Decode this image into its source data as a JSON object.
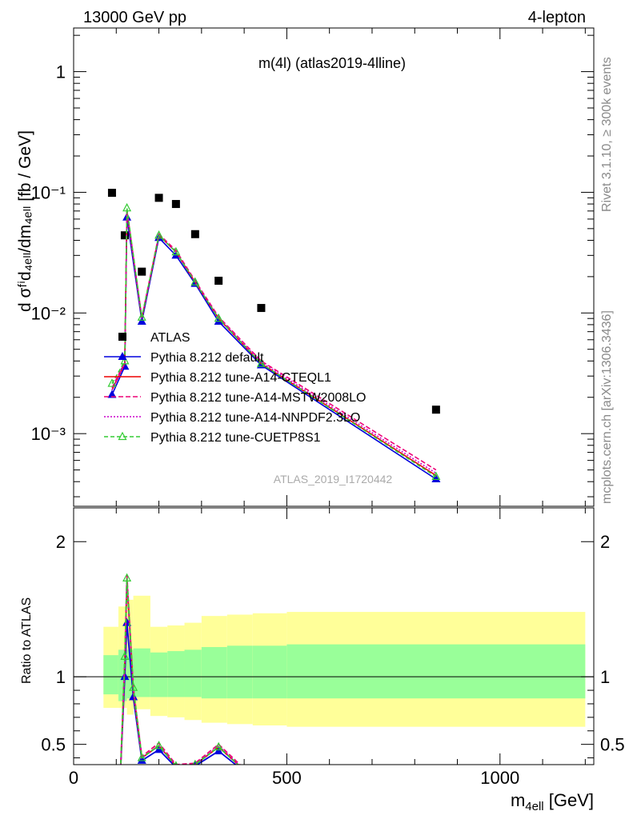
{
  "header": {
    "left": "13000 GeV pp",
    "right": "4-lepton"
  },
  "side_labels": {
    "rivet": "Rivet 3.1.10, ≥ 300k events",
    "mcplots": "mcplots.cern.ch [arXiv:1306.3436]"
  },
  "chart_data": [
    {
      "type": "scatter",
      "title": "m(4l) (atlas2019-4lline)",
      "watermark": "ATLAS_2019_I1720442",
      "xlabel_main": "m",
      "xlabel_sub": "4ell",
      "xlabel_unit": " [GeV]",
      "ylabel": "d σᶠⁱd₄ₑₗₗ/dm₄ₑₗₗ [fb / GeV]",
      "yscale": "log",
      "xlim": [
        0,
        1220
      ],
      "ylim": [
        0.00025,
        2.3
      ],
      "xticks": [
        "0",
        "500",
        "1000"
      ],
      "yticks": [
        "1",
        "10⁻¹",
        "10⁻²",
        "10⁻³"
      ],
      "legend_position": "bottom-left",
      "series": [
        {
          "name": "ATLAS",
          "color": "#000000",
          "marker": "square",
          "x": [
            90,
            120,
            160,
            200,
            240,
            285,
            340,
            440,
            850
          ],
          "y": [
            0.099,
            0.044,
            0.022,
            0.09,
            0.08,
            0.045,
            0.0185,
            0.011,
            0.00158
          ]
        },
        {
          "name": "Pythia 8.212 default",
          "color": "#0000dd",
          "marker": "triangle",
          "x": [
            90,
            120,
            125,
            160,
            200,
            240,
            285,
            340,
            440,
            850
          ],
          "y": [
            0.0021,
            0.0036,
            0.062,
            0.0085,
            0.042,
            0.03,
            0.0175,
            0.0085,
            0.0037,
            0.00042
          ]
        },
        {
          "name": "Pythia 8.212 tune-A14-CTEQL1",
          "color": "#ee0000",
          "marker": "none",
          "x": [
            90,
            120,
            125,
            160,
            200,
            240,
            285,
            340,
            440,
            850
          ],
          "y": [
            0.0023,
            0.0038,
            0.07,
            0.009,
            0.044,
            0.032,
            0.018,
            0.009,
            0.0038,
            0.00045
          ]
        },
        {
          "name": "Pythia 8.212 tune-A14-MSTW2008LO",
          "color": "#ee0077",
          "marker": "none",
          "x": [
            90,
            120,
            125,
            160,
            200,
            240,
            285,
            340,
            440,
            850
          ],
          "y": [
            0.0024,
            0.0039,
            0.072,
            0.0092,
            0.045,
            0.033,
            0.0185,
            0.0093,
            0.004,
            0.0005
          ]
        },
        {
          "name": "Pythia 8.212 tune-A14-NNPDF2.3LO",
          "color": "#cc00cc",
          "marker": "none",
          "x": [
            90,
            120,
            125,
            160,
            200,
            240,
            285,
            340,
            440,
            850
          ],
          "y": [
            0.0023,
            0.0038,
            0.069,
            0.009,
            0.044,
            0.032,
            0.018,
            0.0091,
            0.0039,
            0.00047
          ]
        },
        {
          "name": "Pythia 8.212 tune-CUETP8S1",
          "color": "#33cc33",
          "marker": "open-triangle",
          "x": [
            90,
            120,
            125,
            160,
            200,
            240,
            285,
            340,
            440,
            850
          ],
          "y": [
            0.0026,
            0.004,
            0.074,
            0.0092,
            0.044,
            0.032,
            0.018,
            0.009,
            0.0038,
            0.00044
          ]
        }
      ]
    },
    {
      "type": "line",
      "ylabel": "Ratio to ATLAS",
      "xlim": [
        0,
        1220
      ],
      "ylim": [
        0.35,
        2.25
      ],
      "yticks": [
        "0.5",
        "1",
        "2"
      ],
      "bands": {
        "edges": [
          70,
          105,
          125,
          140,
          180,
          220,
          260,
          300,
          360,
          420,
          500,
          1200
        ],
        "yellow_lo": [
          0.77,
          0.77,
          0.72,
          0.76,
          0.71,
          0.7,
          0.68,
          0.66,
          0.65,
          0.64,
          0.63
        ],
        "yellow_hi": [
          1.37,
          1.52,
          1.57,
          1.6,
          1.37,
          1.38,
          1.4,
          1.45,
          1.46,
          1.47,
          1.48
        ],
        "green_lo": [
          0.87,
          0.82,
          0.84,
          0.85,
          0.85,
          0.85,
          0.85,
          0.84,
          0.84,
          0.84,
          0.84
        ],
        "green_hi": [
          1.16,
          1.2,
          1.2,
          1.21,
          1.18,
          1.19,
          1.2,
          1.22,
          1.23,
          1.23,
          1.24
        ]
      },
      "series": [
        {
          "name": "Pythia 8.212 default",
          "color": "#0000dd",
          "marker": "triangle",
          "x": [
            110,
            120,
            125,
            140,
            160,
            200,
            240,
            285,
            340,
            400
          ],
          "y": [
            0.3,
            1.0,
            1.4,
            0.85,
            0.38,
            0.46,
            0.33,
            0.34,
            0.45,
            0.3
          ]
        },
        {
          "name": "Pythia 8.212 tune-A14-CTEQL1",
          "color": "#ee0000",
          "marker": "none",
          "x": [
            110,
            120,
            125,
            140,
            160,
            200,
            240,
            285,
            340,
            400
          ],
          "y": [
            0.3,
            1.1,
            1.72,
            0.9,
            0.4,
            0.49,
            0.34,
            0.35,
            0.48,
            0.31
          ]
        },
        {
          "name": "Pythia 8.212 tune-A14-MSTW2008LO",
          "color": "#ee0077",
          "marker": "none",
          "x": [
            110,
            120,
            125,
            140,
            160,
            200,
            240,
            285,
            340,
            400
          ],
          "y": [
            0.31,
            1.12,
            1.75,
            0.92,
            0.41,
            0.51,
            0.35,
            0.36,
            0.5,
            0.32
          ]
        },
        {
          "name": "Pythia 8.212 tune-A14-NNPDF2.3LO",
          "color": "#cc00cc",
          "marker": "none",
          "x": [
            110,
            120,
            125,
            140,
            160,
            200,
            240,
            285,
            340,
            400
          ],
          "y": [
            0.3,
            1.1,
            1.7,
            0.9,
            0.4,
            0.49,
            0.34,
            0.35,
            0.49,
            0.31
          ]
        },
        {
          "name": "Pythia 8.212 tune-CUETP8S1",
          "color": "#33cc33",
          "marker": "open-triangle",
          "x": [
            110,
            120,
            125,
            140,
            160,
            200,
            240,
            285,
            340,
            400
          ],
          "y": [
            0.31,
            1.15,
            1.73,
            0.92,
            0.4,
            0.49,
            0.34,
            0.35,
            0.48,
            0.31
          ]
        }
      ]
    }
  ]
}
